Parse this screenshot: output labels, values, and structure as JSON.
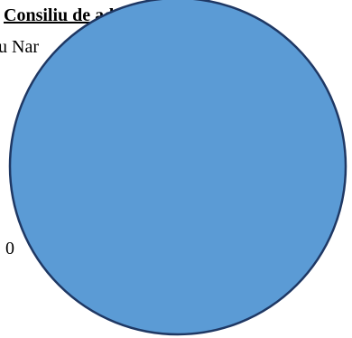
{
  "document": {
    "line_1": "Consiliu de administrație,",
    "line_2": "u Nar",
    "side_number": "0"
  },
  "shape": {
    "type": "circle",
    "fill": "#5B9BD5",
    "stroke": "#1F3864"
  }
}
